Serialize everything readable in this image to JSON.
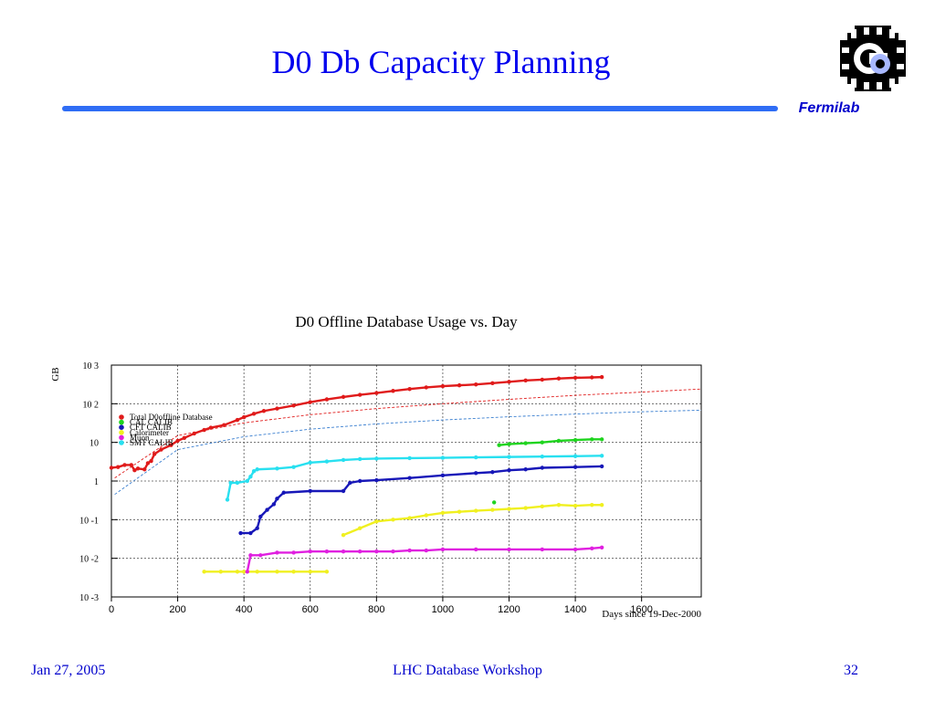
{
  "slide": {
    "title": "D0 Db Capacity Planning",
    "logo_label": "Fermilab",
    "footer_date": "Jan 27, 2005",
    "footer_event": "LHC Database Workshop",
    "footer_page": "32",
    "accent_color": "#0000ee",
    "rule_color": "#2f6df5"
  },
  "chart_data": {
    "type": "scatter",
    "title": "D0 Offline Database Usage vs. Day",
    "xlabel": "Days since 19-Dec-2000",
    "ylabel": "GB",
    "y_scale": "log",
    "xlim": [
      0,
      1780
    ],
    "ylim": [
      0.001,
      1000
    ],
    "grid": true,
    "legend_position": "upper-left",
    "x_tick_labels": [
      "0",
      "200",
      "400",
      "600",
      "800",
      "1000",
      "1200",
      "1400",
      "1600"
    ],
    "x_ticks": [
      0,
      200,
      400,
      600,
      800,
      1000,
      1200,
      1400,
      1600
    ],
    "y_tick_labels": [
      "10 -3",
      "10 -2",
      "10 -1",
      "1",
      "10",
      "10 2",
      "10 3"
    ],
    "y_ticks": [
      0.001,
      0.01,
      0.1,
      1,
      10,
      100,
      1000
    ],
    "series": [
      {
        "name": "Total D0offline Database",
        "color": "#e01b1b",
        "x": [
          0,
          20,
          40,
          60,
          70,
          80,
          100,
          110,
          120,
          130,
          150,
          180,
          200,
          220,
          250,
          280,
          300,
          340,
          380,
          400,
          430,
          460,
          500,
          550,
          600,
          650,
          700,
          750,
          800,
          850,
          900,
          950,
          1000,
          1050,
          1100,
          1150,
          1200,
          1250,
          1300,
          1350,
          1400,
          1450,
          1480
        ],
        "y": [
          2.2,
          2.3,
          2.6,
          2.6,
          1.9,
          2.1,
          2.0,
          2.9,
          3.3,
          5.0,
          6.5,
          8.5,
          11,
          13,
          17,
          21,
          24,
          28,
          38,
          45,
          55,
          65,
          75,
          90,
          110,
          130,
          150,
          170,
          190,
          215,
          240,
          265,
          285,
          300,
          315,
          340,
          370,
          400,
          420,
          450,
          470,
          480,
          490
        ]
      },
      {
        "name": "CAL CALIB",
        "color": "#1fd41f",
        "x": [
          1155,
          1170,
          1200,
          1250,
          1300,
          1350,
          1400,
          1450,
          1480
        ],
        "y": [
          0.28,
          8.5,
          9.0,
          9.5,
          10,
          11,
          11.5,
          12,
          12
        ]
      },
      {
        "name": "CFT CALIB",
        "color": "#1717b8",
        "x": [
          390,
          420,
          440,
          450,
          470,
          490,
          500,
          520,
          600,
          700,
          720,
          750,
          800,
          900,
          1000,
          1100,
          1150,
          1200,
          1250,
          1300,
          1400,
          1480
        ],
        "y": [
          0.045,
          0.045,
          0.06,
          0.12,
          0.18,
          0.25,
          0.35,
          0.5,
          0.55,
          0.55,
          0.9,
          1.0,
          1.05,
          1.2,
          1.4,
          1.6,
          1.7,
          1.9,
          2.0,
          2.2,
          2.3,
          2.4
        ]
      },
      {
        "name": "Calorimeter",
        "color": "#f0f020",
        "x": [
          280,
          330,
          380,
          400,
          440,
          500,
          550,
          600,
          650,
          700,
          750,
          800,
          850,
          900,
          950,
          1000,
          1050,
          1100,
          1150,
          1200,
          1250,
          1300,
          1350,
          1400,
          1450,
          1480
        ],
        "y": [
          0.0045,
          0.0045,
          0.0045,
          0.0045,
          0.0045,
          0.0045,
          0.0045,
          0.0045,
          0.0045,
          0.04,
          0.06,
          0.09,
          0.1,
          0.11,
          0.13,
          0.15,
          0.16,
          0.17,
          0.18,
          0.19,
          0.2,
          0.22,
          0.24,
          0.23,
          0.24,
          0.24
        ]
      },
      {
        "name": "Muon",
        "color": "#e020e0",
        "x": [
          410,
          420,
          450,
          500,
          550,
          600,
          650,
          700,
          750,
          800,
          850,
          900,
          950,
          1000,
          1100,
          1200,
          1300,
          1400,
          1450,
          1480
        ],
        "y": [
          0.0045,
          0.012,
          0.012,
          0.014,
          0.014,
          0.015,
          0.015,
          0.015,
          0.015,
          0.015,
          0.015,
          0.016,
          0.016,
          0.017,
          0.017,
          0.017,
          0.017,
          0.017,
          0.018,
          0.019
        ]
      },
      {
        "name": "SMT CALIB",
        "color": "#28e0f0",
        "x": [
          350,
          360,
          380,
          410,
          420,
          430,
          440,
          500,
          550,
          600,
          650,
          700,
          750,
          800,
          900,
          1000,
          1100,
          1200,
          1300,
          1400,
          1480
        ],
        "y": [
          0.33,
          0.9,
          0.9,
          1.0,
          1.3,
          1.8,
          2.0,
          2.1,
          2.3,
          3.0,
          3.2,
          3.5,
          3.7,
          3.8,
          3.9,
          4.0,
          4.1,
          4.2,
          4.3,
          4.4,
          4.5
        ]
      }
    ],
    "fit_lines": [
      {
        "color": "#e01b1b",
        "x": [
          10,
          200,
          400,
          600,
          800,
          1000,
          1200,
          1400,
          1600,
          1780
        ],
        "y": [
          1.2,
          15,
          32,
          52,
          75,
          100,
          130,
          165,
          200,
          240
        ]
      },
      {
        "color": "#3a7fd0",
        "x": [
          10,
          200,
          400,
          600,
          800,
          1000,
          1200,
          1400,
          1600,
          1780
        ],
        "y": [
          0.45,
          6.5,
          14,
          22,
          30,
          38,
          46,
          54,
          62,
          68
        ]
      }
    ]
  }
}
